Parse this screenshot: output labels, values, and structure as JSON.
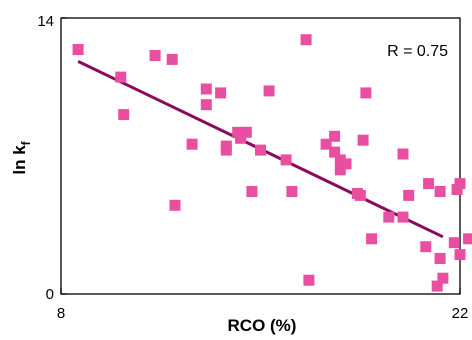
{
  "chart_data": {
    "type": "scatter",
    "title": "",
    "xlabel": "RCO (%)",
    "ylabel_main": "ln k",
    "ylabel_sub": "f",
    "xlim": [
      8,
      22
    ],
    "ylim": [
      0,
      14
    ],
    "x_tick_labels": [
      "8",
      "22"
    ],
    "y_tick_labels": [
      "0",
      "14"
    ],
    "annotation": "R = 0.75",
    "grid": false,
    "legend": "none",
    "colors": {
      "points": "#e94fa0",
      "trendline": "#8b0a5a"
    },
    "trendline": {
      "x": [
        8.6,
        21.4
      ],
      "y": [
        11.8,
        2.9
      ]
    },
    "points": [
      {
        "x": 8.6,
        "y": 12.4
      },
      {
        "x": 10.1,
        "y": 11.0
      },
      {
        "x": 10.2,
        "y": 9.1
      },
      {
        "x": 11.3,
        "y": 12.1
      },
      {
        "x": 11.9,
        "y": 11.9
      },
      {
        "x": 12.0,
        "y": 4.5
      },
      {
        "x": 12.6,
        "y": 7.6
      },
      {
        "x": 13.1,
        "y": 9.6
      },
      {
        "x": 13.1,
        "y": 10.4
      },
      {
        "x": 13.6,
        "y": 10.2
      },
      {
        "x": 13.8,
        "y": 7.5
      },
      {
        "x": 13.8,
        "y": 7.3
      },
      {
        "x": 14.3,
        "y": 7.9
      },
      {
        "x": 14.2,
        "y": 8.2
      },
      {
        "x": 14.5,
        "y": 8.2
      },
      {
        "x": 14.7,
        "y": 5.2
      },
      {
        "x": 15.0,
        "y": 7.3
      },
      {
        "x": 15.3,
        "y": 10.3
      },
      {
        "x": 15.9,
        "y": 6.8
      },
      {
        "x": 16.1,
        "y": 5.2
      },
      {
        "x": 16.6,
        "y": 12.9
      },
      {
        "x": 16.7,
        "y": 0.7
      },
      {
        "x": 17.3,
        "y": 7.6
      },
      {
        "x": 17.6,
        "y": 8.0
      },
      {
        "x": 17.6,
        "y": 7.2
      },
      {
        "x": 17.8,
        "y": 6.8
      },
      {
        "x": 17.8,
        "y": 6.3
      },
      {
        "x": 18.0,
        "y": 6.6
      },
      {
        "x": 18.4,
        "y": 5.1
      },
      {
        "x": 18.5,
        "y": 5.0
      },
      {
        "x": 18.6,
        "y": 7.8
      },
      {
        "x": 18.7,
        "y": 10.2
      },
      {
        "x": 18.9,
        "y": 2.8
      },
      {
        "x": 19.5,
        "y": 3.9
      },
      {
        "x": 20.0,
        "y": 7.1
      },
      {
        "x": 20.0,
        "y": 3.9
      },
      {
        "x": 20.2,
        "y": 5.0
      },
      {
        "x": 20.8,
        "y": 2.4
      },
      {
        "x": 20.9,
        "y": 5.6
      },
      {
        "x": 21.2,
        "y": 0.4
      },
      {
        "x": 21.3,
        "y": 5.2
      },
      {
        "x": 21.3,
        "y": 1.8
      },
      {
        "x": 21.4,
        "y": 0.8
      },
      {
        "x": 21.8,
        "y": 2.6
      },
      {
        "x": 21.9,
        "y": 5.3
      },
      {
        "x": 22.0,
        "y": 5.6
      },
      {
        "x": 22.0,
        "y": 2.0
      },
      {
        "x": 22.3,
        "y": 2.8
      }
    ]
  }
}
